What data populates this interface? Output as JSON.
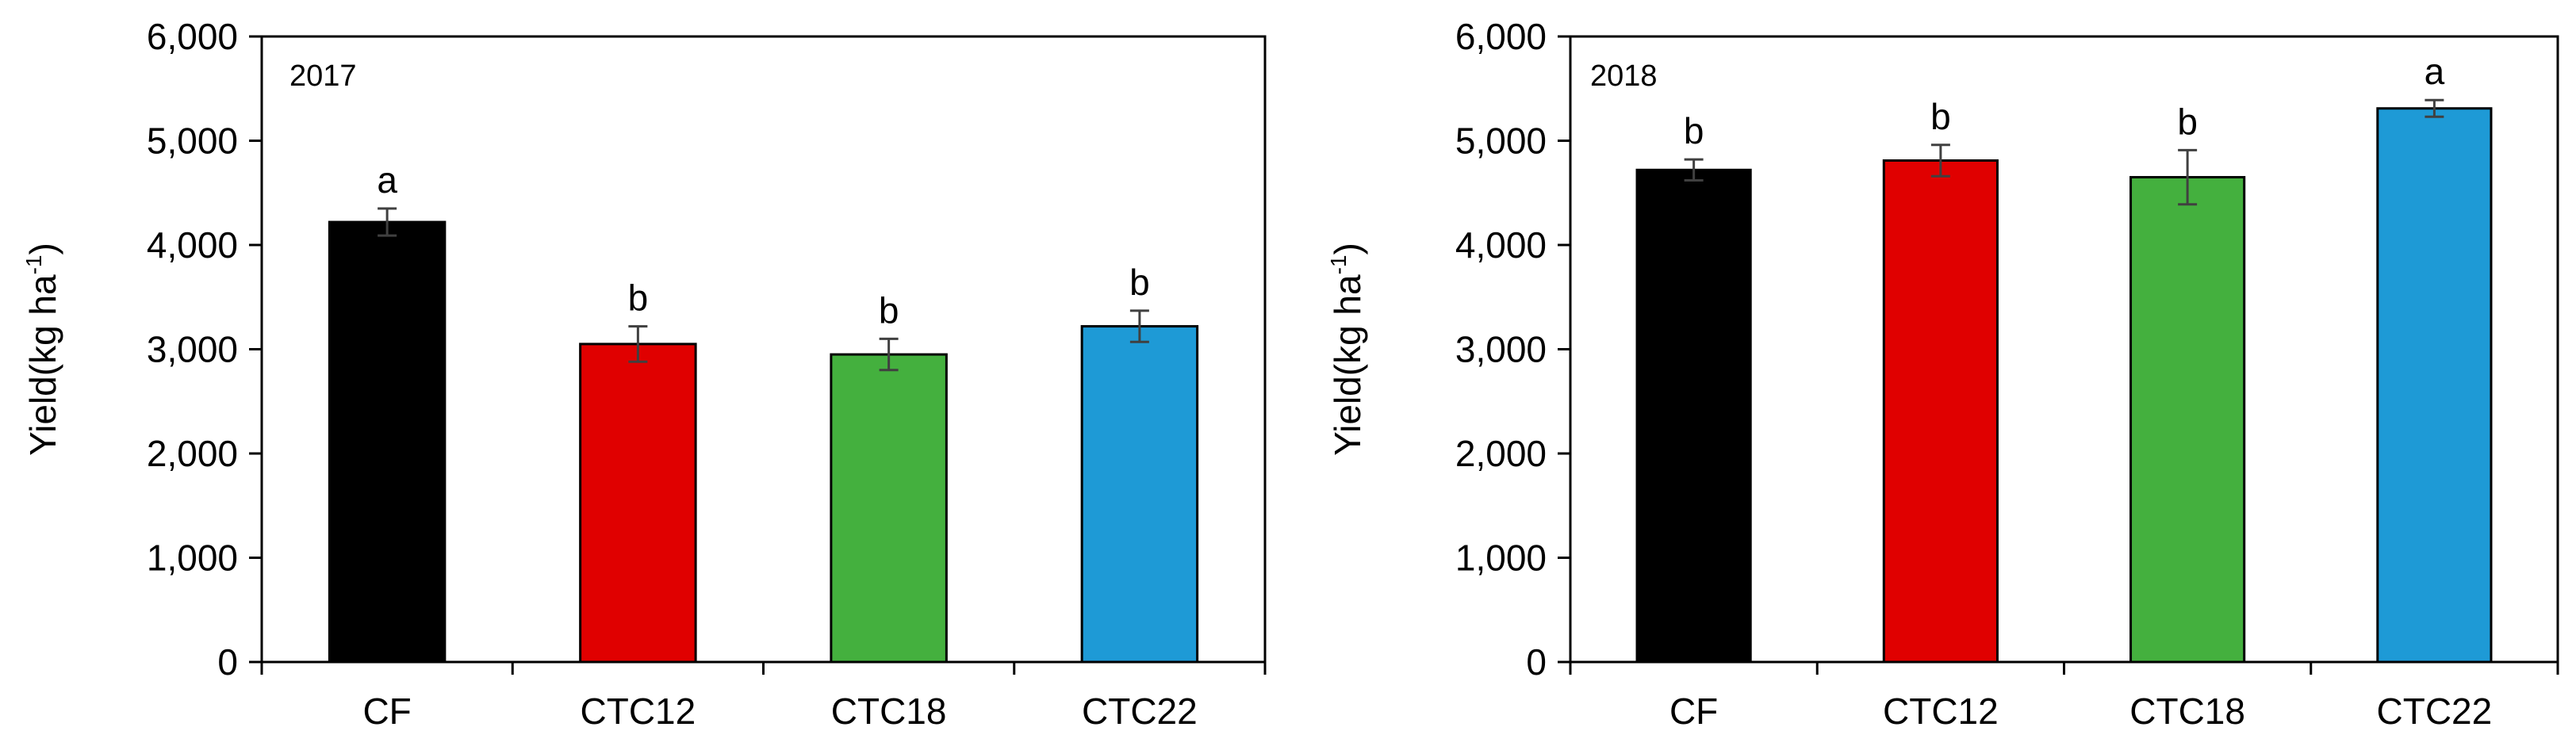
{
  "chart_data": [
    {
      "type": "bar",
      "title": "2017",
      "ylabel_main": "Yield(kg ha",
      "ylabel_sup": "-1",
      "ylabel_close": ")",
      "ylim": [
        0,
        6000
      ],
      "yticks": [
        0,
        1000,
        2000,
        3000,
        4000,
        5000,
        6000
      ],
      "ytick_labels": [
        "0",
        "1,000",
        "2,000",
        "3,000",
        "4,000",
        "5,000",
        "6,000"
      ],
      "categories": [
        "CF",
        "CTC12",
        "CTC18",
        "CTC22"
      ],
      "values": [
        4220,
        3050,
        2950,
        3220
      ],
      "errors": [
        130,
        170,
        150,
        150
      ],
      "significance": [
        "a",
        "b",
        "b",
        "b"
      ],
      "colors": [
        "#000000",
        "#e00000",
        "#44b03e",
        "#1e9ad6"
      ],
      "grid": false
    },
    {
      "type": "bar",
      "title": "2018",
      "ylabel_main": "Yield(kg ha",
      "ylabel_sup": "-1",
      "ylabel_close": ")",
      "ylim": [
        0,
        6000
      ],
      "yticks": [
        0,
        1000,
        2000,
        3000,
        4000,
        5000,
        6000
      ],
      "ytick_labels": [
        "0",
        "1,000",
        "2,000",
        "3,000",
        "4,000",
        "5,000",
        "6,000"
      ],
      "categories": [
        "CF",
        "CTC12",
        "CTC18",
        "CTC22"
      ],
      "values": [
        4720,
        4810,
        4650,
        5310
      ],
      "errors": [
        100,
        150,
        260,
        80
      ],
      "significance": [
        "b",
        "b",
        "b",
        "a"
      ],
      "colors": [
        "#000000",
        "#e00000",
        "#44b03e",
        "#1e9ad6"
      ],
      "grid": false
    }
  ]
}
